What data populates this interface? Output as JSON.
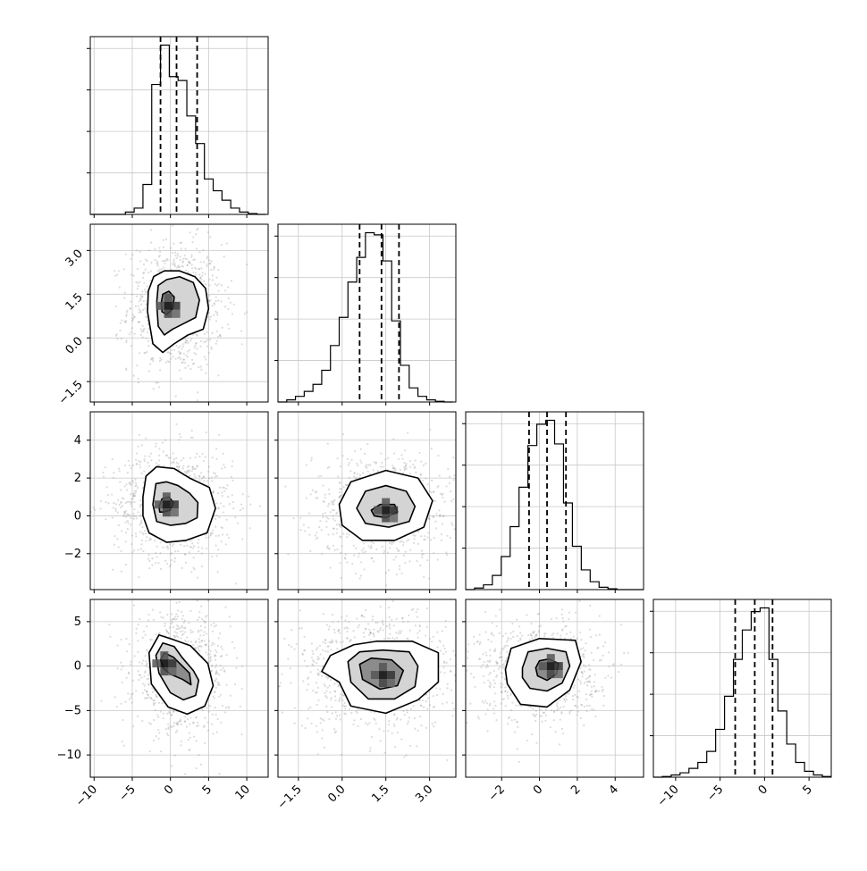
{
  "chart_data": {
    "type": "corner",
    "params": [
      {
        "ticks": [
          -10,
          -5,
          0,
          5,
          10
        ],
        "tick_labels": [
          "−10",
          "−5",
          "0",
          "5",
          "10"
        ],
        "range": [
          -10.5,
          12.8
        ],
        "quantiles": [
          -1.3,
          0.8,
          3.5
        ]
      },
      {
        "ticks": [
          -1.5,
          0.0,
          1.5,
          3.0
        ],
        "tick_labels": [
          "−1.5",
          "0.0",
          "1.5",
          "3.0"
        ],
        "range": [
          -2.2,
          3.9
        ],
        "quantiles": [
          0.6,
          1.35,
          1.95
        ]
      },
      {
        "ticks": [
          -2,
          0,
          2,
          4
        ],
        "tick_labels": [
          "−2",
          "0",
          "2",
          "4"
        ],
        "range": [
          -3.9,
          5.5
        ],
        "quantiles": [
          -0.55,
          0.4,
          1.4
        ]
      },
      {
        "ticks": [
          -10,
          -5,
          0,
          5
        ],
        "tick_labels": [
          "−10",
          "−5",
          "0",
          "5"
        ],
        "range": [
          -12.5,
          7.5
        ],
        "quantiles": [
          -3.3,
          -1.1,
          0.9
        ]
      }
    ],
    "histograms": [
      {
        "bin_edges": [
          -10.5,
          -9.35,
          -8.2,
          -7.05,
          -5.9,
          -4.75,
          -3.6,
          -2.45,
          -1.3,
          -0.15,
          1.0,
          2.15,
          3.3,
          4.45,
          5.6,
          6.75,
          7.9,
          9.05,
          10.2,
          11.35,
          12.5
        ],
        "counts": [
          0,
          0,
          0,
          0,
          3,
          8,
          38,
          165,
          215,
          175,
          170,
          125,
          90,
          45,
          30,
          18,
          8,
          3,
          1,
          0
        ]
      },
      {
        "bin_edges": [
          -2.2,
          -1.9,
          -1.6,
          -1.3,
          -1.0,
          -0.7,
          -0.4,
          -0.1,
          0.2,
          0.5,
          0.8,
          1.1,
          1.4,
          1.7,
          2.0,
          2.3,
          2.6,
          2.9,
          3.2,
          3.5,
          3.8
        ],
        "counts": [
          0,
          3,
          8,
          15,
          25,
          45,
          80,
          120,
          170,
          205,
          240,
          237,
          200,
          115,
          52,
          20,
          8,
          3,
          1,
          0
        ]
      },
      {
        "bin_edges": [
          -3.9,
          -3.43,
          -2.96,
          -2.49,
          -2.02,
          -1.55,
          -1.08,
          -0.61,
          -0.14,
          0.33,
          0.8,
          1.27,
          1.74,
          2.21,
          2.68,
          3.15,
          3.62,
          4.09,
          4.56,
          5.03,
          5.5
        ],
        "counts": [
          0,
          2,
          6,
          18,
          42,
          80,
          130,
          183,
          210,
          215,
          185,
          110,
          55,
          25,
          10,
          3,
          1,
          0,
          0,
          0
        ]
      },
      {
        "bin_edges": [
          -12.5,
          -11.5,
          -10.5,
          -9.5,
          -8.5,
          -7.5,
          -6.5,
          -5.5,
          -4.5,
          -3.5,
          -2.5,
          -1.5,
          -0.5,
          0.5,
          1.5,
          2.5,
          3.5,
          4.5,
          5.5,
          6.5,
          7.5
        ],
        "counts": [
          0,
          1,
          3,
          6,
          12,
          20,
          35,
          65,
          110,
          160,
          200,
          225,
          230,
          160,
          90,
          45,
          20,
          8,
          3,
          1
        ]
      }
    ],
    "contours_2d": [
      {
        "x_param": 0,
        "y_param": 1,
        "peak": [
          -0.3,
          1.1
        ],
        "levels": [
          [
            [
              -3.0,
              0.9
            ],
            [
              -2.9,
              1.6
            ],
            [
              -2.2,
              2.1
            ],
            [
              -0.8,
              2.3
            ],
            [
              1.2,
              2.3
            ],
            [
              3.2,
              2.1
            ],
            [
              4.6,
              1.7
            ],
            [
              5.0,
              1.0
            ],
            [
              4.3,
              0.3
            ],
            [
              2.3,
              0.1
            ],
            [
              0.5,
              -0.2
            ],
            [
              -1.0,
              -0.5
            ],
            [
              -2.3,
              -0.2
            ]
          ],
          [
            [
              -1.8,
              1.2
            ],
            [
              -1.6,
              1.8
            ],
            [
              -0.5,
              2.0
            ],
            [
              1.2,
              2.1
            ],
            [
              3.0,
              1.9
            ],
            [
              3.8,
              1.3
            ],
            [
              3.3,
              0.7
            ],
            [
              1.8,
              0.5
            ],
            [
              0.3,
              0.3
            ],
            [
              -0.8,
              0.1
            ],
            [
              -1.6,
              0.4
            ]
          ],
          [
            [
              -1.2,
              1.2
            ],
            [
              -1.0,
              1.5
            ],
            [
              -0.2,
              1.6
            ],
            [
              0.5,
              1.4
            ],
            [
              0.3,
              1.0
            ],
            [
              -0.5,
              0.8
            ],
            [
              -1.1,
              0.9
            ]
          ]
        ]
      },
      {
        "x_param": 0,
        "y_param": 2,
        "peak": [
          -0.5,
          0.6
        ],
        "levels": [
          [
            [
              -3.6,
              1.0
            ],
            [
              -3.2,
              2.1
            ],
            [
              -1.8,
              2.6
            ],
            [
              0.5,
              2.5
            ],
            [
              2.5,
              2.0
            ],
            [
              5.1,
              1.5
            ],
            [
              5.9,
              0.4
            ],
            [
              4.8,
              -0.9
            ],
            [
              2.0,
              -1.3
            ],
            [
              -0.5,
              -1.4
            ],
            [
              -2.8,
              -0.9
            ],
            [
              -3.6,
              0.0
            ]
          ],
          [
            [
              -2.3,
              0.6
            ],
            [
              -1.9,
              1.7
            ],
            [
              -0.5,
              1.8
            ],
            [
              1.0,
              1.6
            ],
            [
              2.5,
              1.2
            ],
            [
              3.6,
              0.7
            ],
            [
              3.5,
              -0.1
            ],
            [
              2.0,
              -0.4
            ],
            [
              0.0,
              -0.5
            ],
            [
              -1.8,
              -0.3
            ]
          ],
          [
            [
              -1.5,
              0.5
            ],
            [
              -1.1,
              0.9
            ],
            [
              -0.2,
              1.0
            ],
            [
              0.4,
              0.7
            ],
            [
              0.0,
              0.3
            ],
            [
              -0.9,
              0.2
            ],
            [
              -1.4,
              0.2
            ]
          ]
        ]
      },
      {
        "x_param": 1,
        "y_param": 2,
        "peak": [
          1.5,
          0.3
        ],
        "levels": [
          [
            [
              -0.1,
              0.6
            ],
            [
              0.3,
              1.8
            ],
            [
              1.5,
              2.4
            ],
            [
              2.6,
              2.0
            ],
            [
              3.1,
              0.8
            ],
            [
              2.8,
              -0.6
            ],
            [
              1.8,
              -1.3
            ],
            [
              0.7,
              -1.3
            ],
            [
              0.0,
              -0.5
            ]
          ],
          [
            [
              0.5,
              0.4
            ],
            [
              0.8,
              1.3
            ],
            [
              1.5,
              1.6
            ],
            [
              2.2,
              1.3
            ],
            [
              2.5,
              0.5
            ],
            [
              2.3,
              -0.3
            ],
            [
              1.6,
              -0.6
            ],
            [
              0.8,
              -0.4
            ]
          ],
          [
            [
              1.0,
              0.3
            ],
            [
              1.3,
              0.6
            ],
            [
              1.8,
              0.6
            ],
            [
              1.9,
              0.2
            ],
            [
              1.5,
              -0.1
            ],
            [
              1.1,
              0.0
            ]
          ]
        ]
      },
      {
        "x_param": 0,
        "y_param": 3,
        "peak": [
          -0.8,
          0.3
        ],
        "levels": [
          [
            [
              -2.8,
              1.5
            ],
            [
              -1.5,
              3.5
            ],
            [
              0.3,
              3.0
            ],
            [
              2.6,
              2.3
            ],
            [
              4.9,
              0.3
            ],
            [
              5.6,
              -2.2
            ],
            [
              4.5,
              -4.5
            ],
            [
              2.2,
              -5.4
            ],
            [
              -0.3,
              -4.6
            ],
            [
              -2.5,
              -2.0
            ]
          ],
          [
            [
              -1.9,
              1.2
            ],
            [
              -1.0,
              2.6
            ],
            [
              0.5,
              2.2
            ],
            [
              1.5,
              1.0
            ],
            [
              3.0,
              -0.5
            ],
            [
              3.7,
              -1.6
            ],
            [
              3.3,
              -3.3
            ],
            [
              1.7,
              -3.8
            ],
            [
              0.0,
              -3.0
            ],
            [
              -1.5,
              -0.8
            ]
          ],
          [
            [
              -1.3,
              0.7
            ],
            [
              -0.8,
              1.5
            ],
            [
              0.4,
              1.0
            ],
            [
              2.5,
              -0.8
            ],
            [
              2.7,
              -2.1
            ],
            [
              1.6,
              -1.5
            ],
            [
              0.0,
              -0.9
            ],
            [
              -0.9,
              -0.3
            ]
          ]
        ]
      },
      {
        "x_param": 1,
        "y_param": 3,
        "peak": [
          1.4,
          -1.0
        ],
        "levels": [
          [
            [
              -0.4,
              1.2
            ],
            [
              0.4,
              2.4
            ],
            [
              1.2,
              2.8
            ],
            [
              2.4,
              2.8
            ],
            [
              3.3,
              1.5
            ],
            [
              3.3,
              -1.8
            ],
            [
              2.6,
              -3.8
            ],
            [
              1.5,
              -5.3
            ],
            [
              0.3,
              -4.5
            ],
            [
              -0.1,
              -1.8
            ],
            [
              -0.7,
              -0.6
            ]
          ],
          [
            [
              0.2,
              0.5
            ],
            [
              0.6,
              1.6
            ],
            [
              1.4,
              1.8
            ],
            [
              2.3,
              1.6
            ],
            [
              2.6,
              0.0
            ],
            [
              2.5,
              -2.3
            ],
            [
              1.8,
              -3.7
            ],
            [
              0.9,
              -3.7
            ],
            [
              0.3,
              -1.8
            ]
          ],
          [
            [
              0.6,
              0.2
            ],
            [
              1.0,
              0.9
            ],
            [
              1.7,
              0.7
            ],
            [
              2.1,
              -0.5
            ],
            [
              1.9,
              -2.2
            ],
            [
              1.3,
              -2.6
            ],
            [
              0.7,
              -1.5
            ]
          ]
        ]
      },
      {
        "x_param": 2,
        "y_param": 3,
        "peak": [
          0.6,
          0.0
        ],
        "levels": [
          [
            [
              -1.8,
              -0.4
            ],
            [
              -1.5,
              2.0
            ],
            [
              0.0,
              3.1
            ],
            [
              1.9,
              2.9
            ],
            [
              2.2,
              0.5
            ],
            [
              1.6,
              -2.7
            ],
            [
              0.4,
              -4.6
            ],
            [
              -1.0,
              -4.3
            ],
            [
              -1.7,
              -2.0
            ]
          ],
          [
            [
              -0.9,
              -0.2
            ],
            [
              -0.6,
              1.6
            ],
            [
              0.4,
              2.0
            ],
            [
              1.4,
              1.6
            ],
            [
              1.6,
              0.0
            ],
            [
              1.2,
              -1.9
            ],
            [
              0.4,
              -2.8
            ],
            [
              -0.5,
              -2.5
            ],
            [
              -0.9,
              -1.3
            ]
          ],
          [
            [
              -0.2,
              -0.2
            ],
            [
              0.0,
              0.6
            ],
            [
              0.5,
              0.8
            ],
            [
              1.0,
              0.3
            ],
            [
              0.9,
              -0.9
            ],
            [
              0.4,
              -1.6
            ],
            [
              -0.1,
              -1.1
            ]
          ]
        ]
      }
    ]
  }
}
